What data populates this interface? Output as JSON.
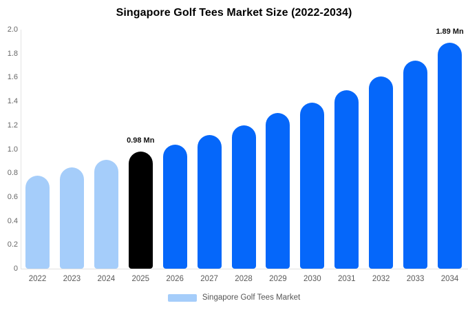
{
  "chart_data": {
    "type": "bar",
    "title": "Singapore Golf Tees Market Size (2022-2034)",
    "xlabel": "",
    "ylabel": "",
    "ylim": [
      0,
      2.0
    ],
    "y_ticks": [
      "0",
      "0.2",
      "0.4",
      "0.6",
      "0.8",
      "1.0",
      "1.2",
      "1.4",
      "1.6",
      "1.8",
      "2.0"
    ],
    "categories": [
      "2022",
      "2023",
      "2024",
      "2025",
      "2026",
      "2027",
      "2028",
      "2029",
      "2030",
      "2031",
      "2032",
      "2033",
      "2034"
    ],
    "values": [
      0.78,
      0.85,
      0.91,
      0.98,
      1.04,
      1.12,
      1.2,
      1.3,
      1.39,
      1.49,
      1.61,
      1.74,
      1.89
    ],
    "bar_color_keys": [
      "historical",
      "historical",
      "historical",
      "highlight",
      "forecast",
      "forecast",
      "forecast",
      "forecast",
      "forecast",
      "forecast",
      "forecast",
      "forecast",
      "forecast"
    ],
    "colors": {
      "historical": "#A5CDFA",
      "highlight": "#000000",
      "forecast": "#0567FA"
    },
    "annotations": [
      {
        "category": "2025",
        "text": "0.98 Mn"
      },
      {
        "category": "2034",
        "text": "1.89 Mn"
      }
    ],
    "grid": false,
    "legend_position": "bottom"
  },
  "legend": {
    "label": "Singapore Golf Tees Market",
    "swatch_color": "#A5CDFA"
  }
}
